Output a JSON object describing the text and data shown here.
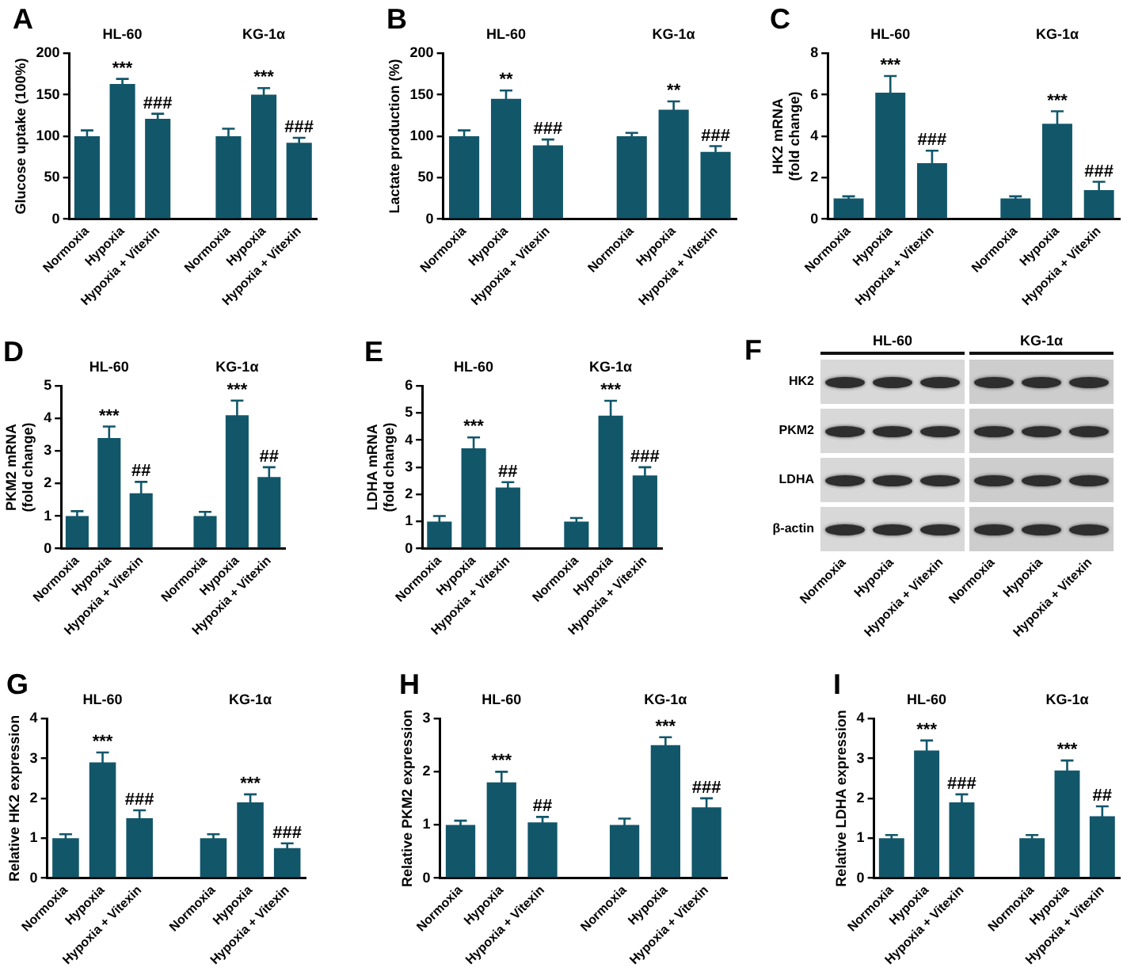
{
  "chart_data": [
    {
      "type": "bar",
      "title": "A",
      "ylabel": "Glucose uptake (100%)",
      "categories": [
        "Normoxia",
        "Hypoxia",
        "Hypoxia + Vitexin",
        null,
        "Normoxia",
        "Hypoxia",
        "Hypoxia + Vitexin"
      ],
      "values": [
        100,
        163,
        121,
        null,
        100,
        150,
        92
      ],
      "errors": [
        7,
        6,
        6,
        null,
        9,
        8,
        6
      ],
      "value_labels": [
        null,
        "***",
        "###",
        null,
        null,
        "***",
        "###"
      ],
      "color": "#12566a",
      "ylim": [
        0,
        200
      ],
      "yticks": [
        0,
        50,
        100,
        150,
        200
      ],
      "annotations": [
        "HL-60",
        "KG-1α"
      ]
    },
    {
      "type": "bar",
      "title": "B",
      "ylabel": "Lactate production (%)",
      "categories": [
        "Normoxia",
        "Hypoxia",
        "Hypoxia + Vitexin",
        null,
        "Normoxia",
        "Hypoxia",
        "Hypoxia + Vitexin"
      ],
      "values": [
        100,
        145,
        89,
        null,
        100,
        132,
        81
      ],
      "errors": [
        7,
        10,
        7,
        null,
        4,
        10,
        7
      ],
      "value_labels": [
        null,
        "**",
        "###",
        null,
        null,
        "**",
        "###"
      ],
      "color": "#12566a",
      "ylim": [
        0,
        200
      ],
      "yticks": [
        0,
        50,
        100,
        150,
        200
      ],
      "annotations": [
        "HL-60",
        "KG-1α"
      ]
    },
    {
      "type": "bar",
      "title": "C",
      "ylabel": "HK2 mRNA\n(fold change)",
      "categories": [
        "Normoxia",
        "Hypoxia",
        "Hypoxia + Vitexin",
        null,
        "Normoxia",
        "Hypoxia",
        "Hypoxia + Vitexin"
      ],
      "values": [
        1,
        6.1,
        2.7,
        null,
        1,
        4.6,
        1.4
      ],
      "errors": [
        0.1,
        0.8,
        0.6,
        null,
        0.1,
        0.6,
        0.4
      ],
      "value_labels": [
        null,
        "***",
        "###",
        null,
        null,
        "***",
        "###"
      ],
      "color": "#12566a",
      "ylim": [
        0,
        8
      ],
      "yticks": [
        0,
        2,
        4,
        6,
        8
      ],
      "annotations": [
        "HL-60",
        "KG-1α"
      ]
    },
    {
      "type": "bar",
      "title": "D",
      "ylabel": "PKM2 mRNA\n(fold change)",
      "categories": [
        "Normoxia",
        "Hypoxia",
        "Hypoxia + Vitexin",
        null,
        "Normoxia",
        "Hypoxia",
        "Hypoxia + Vitexin"
      ],
      "values": [
        1,
        3.4,
        1.7,
        null,
        1,
        4.1,
        2.2
      ],
      "errors": [
        0.15,
        0.35,
        0.35,
        null,
        0.13,
        0.45,
        0.3
      ],
      "value_labels": [
        null,
        "***",
        "##",
        null,
        null,
        "***",
        "##"
      ],
      "color": "#12566a",
      "ylim": [
        0,
        5
      ],
      "yticks": [
        0,
        1,
        2,
        3,
        4,
        5
      ],
      "annotations": [
        "HL-60",
        "KG-1α"
      ]
    },
    {
      "type": "bar",
      "title": "E",
      "ylabel": "LDHA mRNA\n(fold change)",
      "categories": [
        "Normoxia",
        "Hypoxia",
        "Hypoxia + Vitexin",
        null,
        "Normoxia",
        "Hypoxia",
        "Hypoxia + Vitexin"
      ],
      "values": [
        1,
        3.7,
        2.25,
        null,
        1,
        4.9,
        2.7
      ],
      "errors": [
        0.2,
        0.4,
        0.2,
        null,
        0.13,
        0.55,
        0.3
      ],
      "value_labels": [
        null,
        "***",
        "##",
        null,
        null,
        "***",
        "###"
      ],
      "color": "#12566a",
      "ylim": [
        0,
        6
      ],
      "yticks": [
        0,
        1,
        2,
        3,
        4,
        5,
        6
      ],
      "annotations": [
        "HL-60",
        "KG-1α"
      ]
    },
    {
      "type": "other",
      "title": "F",
      "categories": [
        "Normoxia",
        "Hypoxia",
        "Hypoxia + Vitexin",
        "Normoxia",
        "Hypoxia",
        "Hypoxia + Vitexin"
      ],
      "y_categories": [
        "HK2",
        "PKM2",
        "LDHA",
        "β-actin"
      ],
      "annotations": [
        "HL-60",
        "KG-1α"
      ]
    },
    {
      "type": "bar",
      "title": "G",
      "ylabel": "Relative HK2 expression",
      "categories": [
        "Normoxia",
        "Hypoxia",
        "Hypoxia + Vitexin",
        null,
        "Normoxia",
        "Hypoxia",
        "Hypoxia + Vitexin"
      ],
      "values": [
        1,
        2.9,
        1.5,
        null,
        1,
        1.9,
        0.75
      ],
      "errors": [
        0.1,
        0.25,
        0.2,
        null,
        0.1,
        0.2,
        0.12
      ],
      "value_labels": [
        null,
        "***",
        "###",
        null,
        null,
        "***",
        "###"
      ],
      "color": "#12566a",
      "ylim": [
        0,
        4
      ],
      "yticks": [
        0,
        1,
        2,
        3,
        4
      ],
      "annotations": [
        "HL-60",
        "KG-1α"
      ]
    },
    {
      "type": "bar",
      "title": "H",
      "ylabel": "Relative PKM2 expression",
      "categories": [
        "Normoxia",
        "Hypoxia",
        "Hypoxia + Vitexin",
        null,
        "Normoxia",
        "Hypoxia",
        "Hypoxia + Vitexin"
      ],
      "values": [
        1,
        1.8,
        1.05,
        null,
        1,
        2.5,
        1.33
      ],
      "errors": [
        0.08,
        0.2,
        0.1,
        null,
        0.12,
        0.15,
        0.17
      ],
      "value_labels": [
        null,
        "***",
        "##",
        null,
        null,
        "***",
        "###"
      ],
      "color": "#12566a",
      "ylim": [
        0,
        3
      ],
      "yticks": [
        0,
        1,
        2,
        3
      ],
      "annotations": [
        "HL-60",
        "KG-1α"
      ]
    },
    {
      "type": "bar",
      "title": "I",
      "ylabel": "Relative LDHA expression",
      "categories": [
        "Normoxia",
        "Hypoxia",
        "Hypoxia + Vitexin",
        null,
        "Normoxia",
        "Hypoxia",
        "Hypoxia + Vitexin"
      ],
      "values": [
        1,
        3.2,
        1.9,
        null,
        1,
        2.7,
        1.55
      ],
      "errors": [
        0.08,
        0.25,
        0.2,
        null,
        0.08,
        0.25,
        0.25
      ],
      "value_labels": [
        null,
        "***",
        "###",
        null,
        null,
        "***",
        "##"
      ],
      "color": "#12566a",
      "ylim": [
        0,
        4
      ],
      "yticks": [
        0,
        1,
        2,
        3,
        4
      ],
      "annotations": [
        "HL-60",
        "KG-1α"
      ]
    }
  ]
}
